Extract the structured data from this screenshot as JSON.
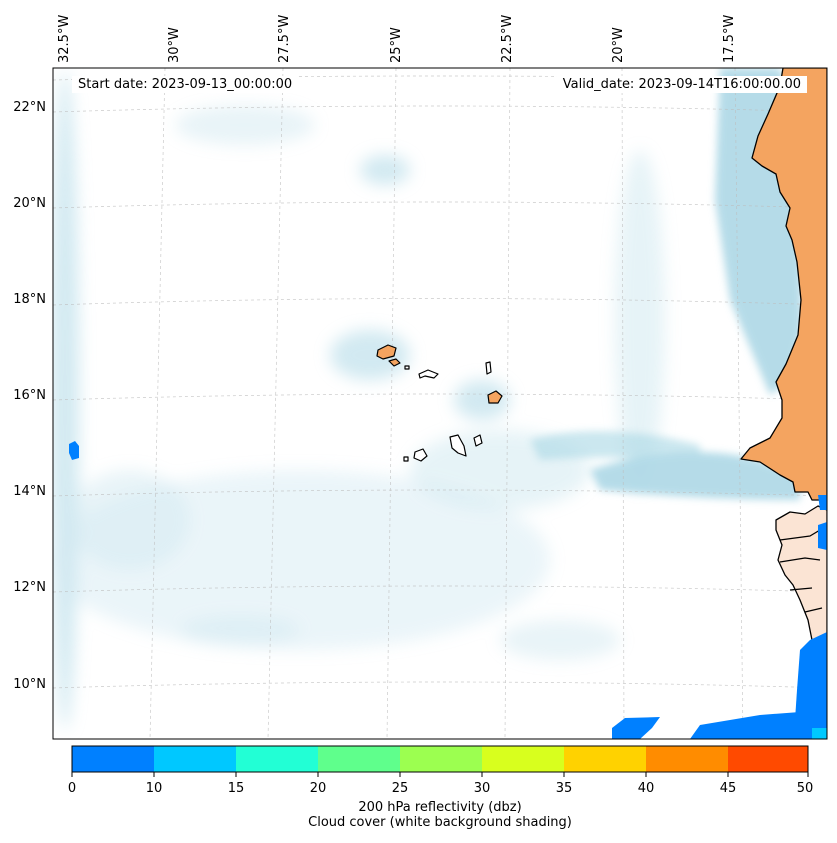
{
  "header": {
    "start_date": "Start date: 2023-09-13_00:00:00",
    "valid_date": "Valid_date: 2023-09-14T16:00:00.00"
  },
  "map": {
    "projection": "lambert-conformal",
    "lon_range": [
      -32.8,
      -14.8
    ],
    "lat_range": [
      8.9,
      22.8
    ],
    "lon_labels": [
      "32.5°W",
      "30°W",
      "27.5°W",
      "25°W",
      "22.5°W",
      "20°W",
      "17.5°W"
    ],
    "lat_labels": [
      "22°N",
      "20°N",
      "18°N",
      "16°N",
      "14°N",
      "12°N",
      "10°N"
    ],
    "gridlines": true,
    "land_color": "#f4a460",
    "cloud_color": "#add8e6",
    "coastline_color": "#000000"
  },
  "colorbar": {
    "ticks": [
      "0",
      "10",
      "15",
      "20",
      "25",
      "30",
      "35",
      "40",
      "45",
      "50"
    ],
    "colors": [
      "#0080ff",
      "#00c8ff",
      "#22ffd5",
      "#5fff8c",
      "#9cff50",
      "#d8ff1e",
      "#ffd200",
      "#ff8c00",
      "#ff4a00"
    ],
    "title": "200 hPa reflectivity (dbz)",
    "subtitle": "Cloud cover (white background shading)"
  }
}
